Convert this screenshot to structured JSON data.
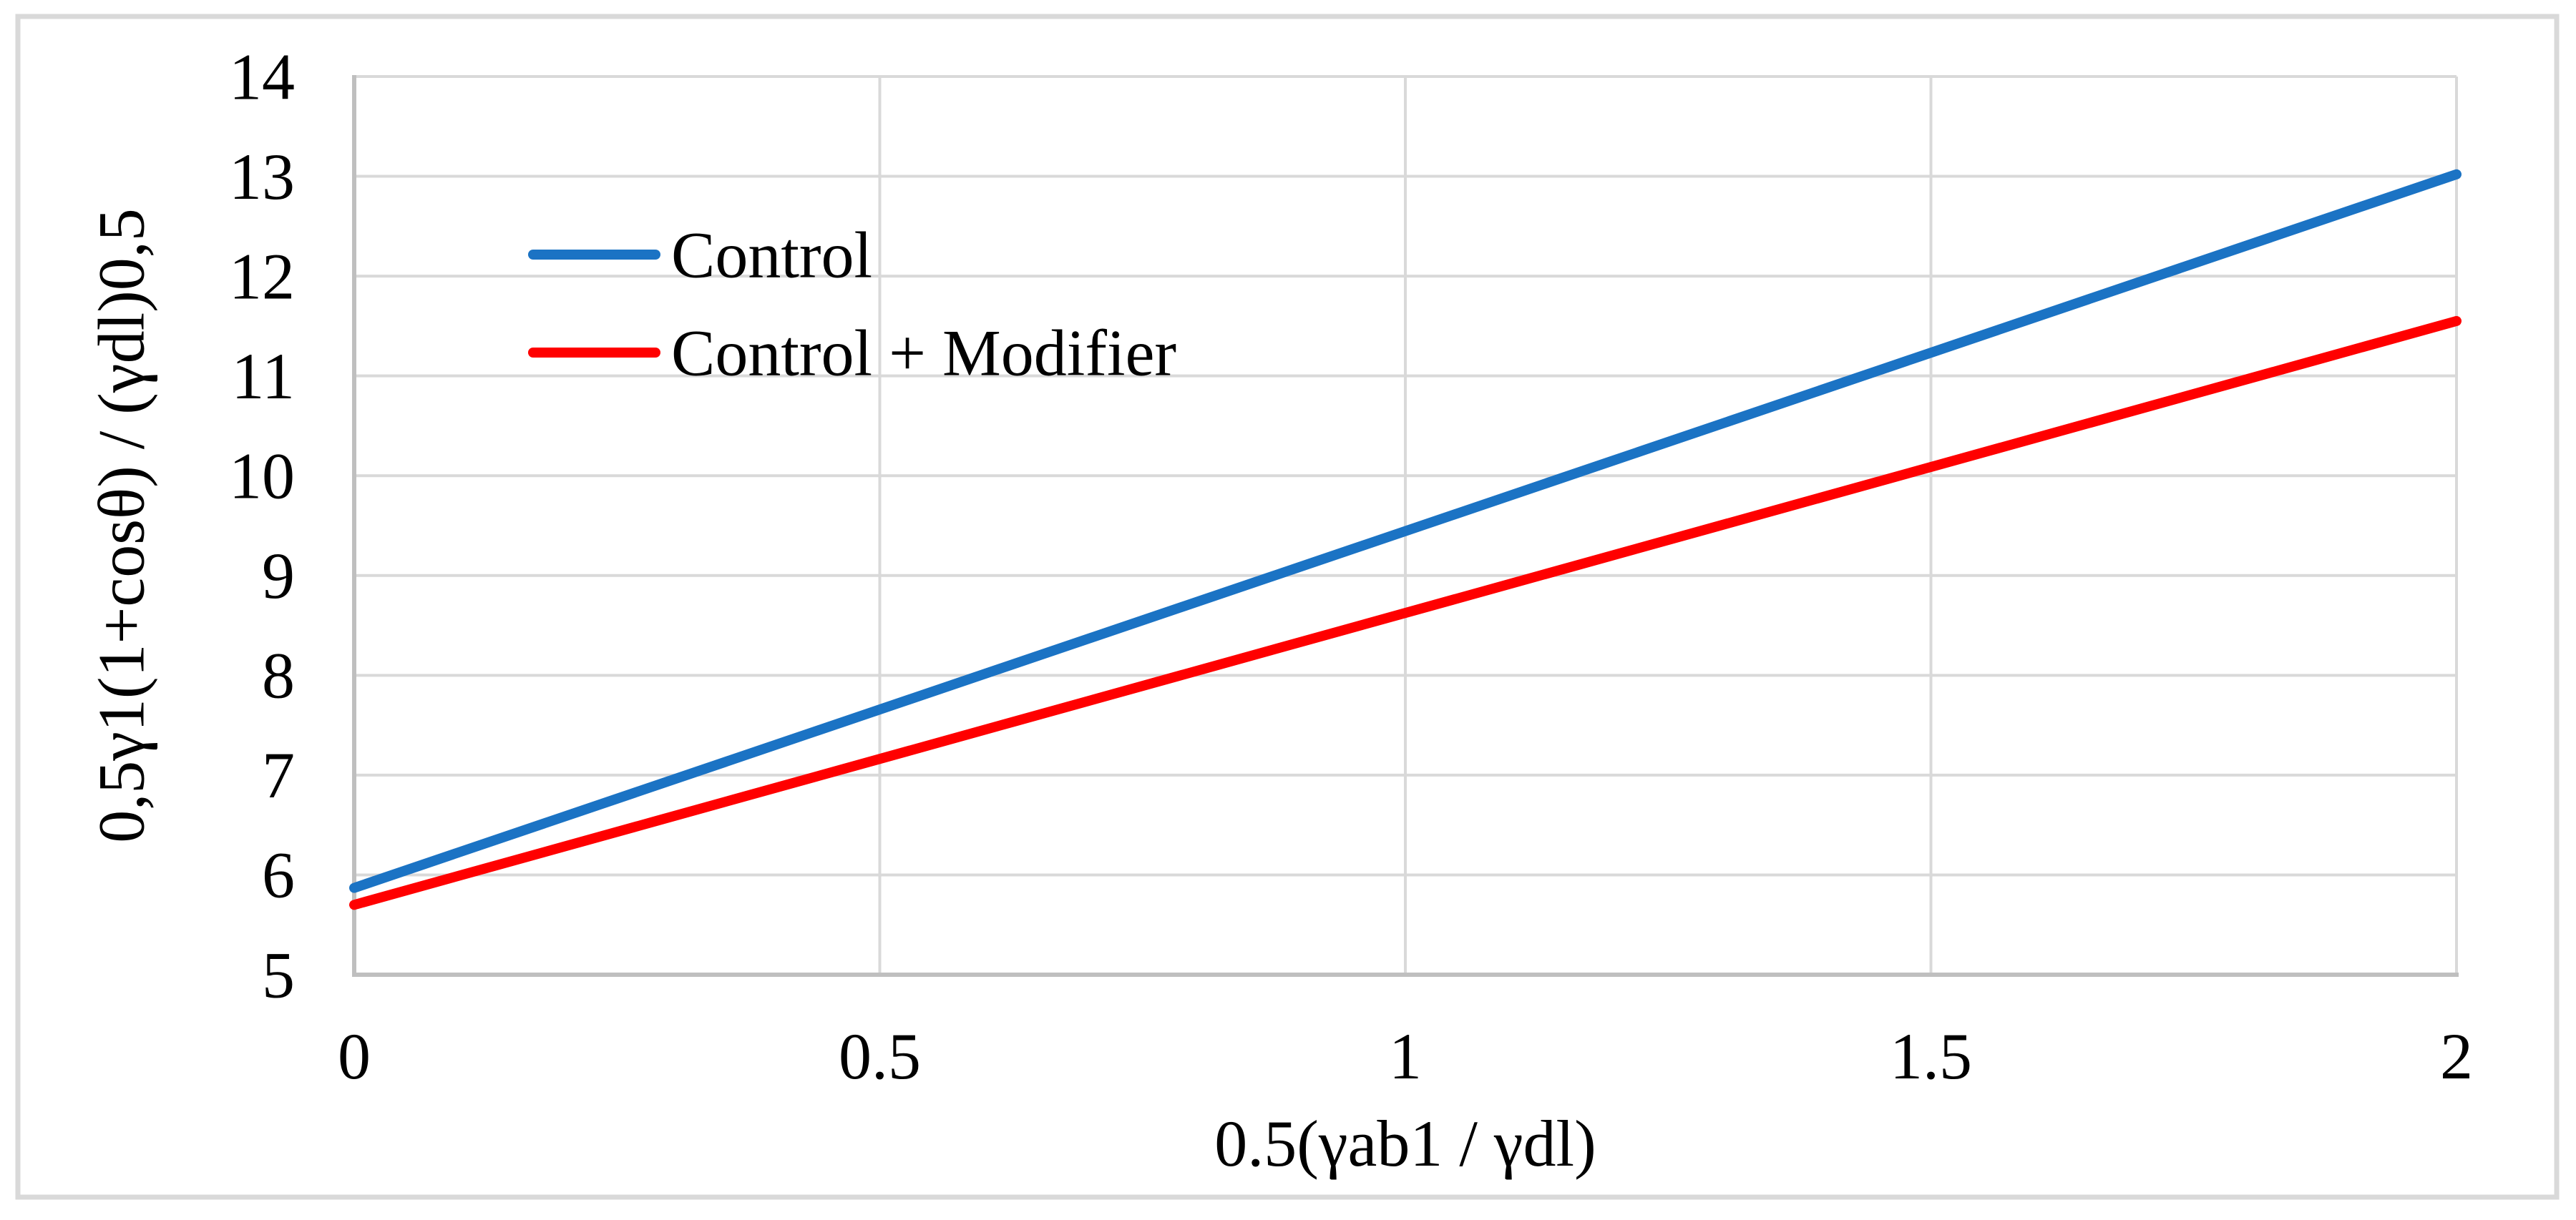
{
  "style": {
    "background": "#FFFFFF",
    "border_color": "#D9D9D9",
    "gridline_color": "#D9D9D9",
    "axis_line_color": "#BFBFBF",
    "text_color": "#000000"
  },
  "chart_data": {
    "type": "line",
    "title": "",
    "xlabel": "0.5(γab1 / γdl)",
    "ylabel": "0,5γ1(1+cosθ) / (γdl)0,5",
    "xlim": [
      0,
      2
    ],
    "ylim": [
      5,
      14
    ],
    "grid": true,
    "legend_position": "inside top-left",
    "xticks": [
      0,
      0.5,
      1,
      1.5,
      2
    ],
    "xtick_labels": [
      "0",
      "0.5",
      "1",
      "1.5",
      "2"
    ],
    "yticks": [
      5,
      6,
      7,
      8,
      9,
      10,
      11,
      12,
      13,
      14
    ],
    "ytick_labels": [
      "5",
      "6",
      "7",
      "8",
      "9",
      "10",
      "11",
      "12",
      "13",
      "14"
    ],
    "series": [
      {
        "name": "Control",
        "color": "#1B73C4",
        "x": [
          0,
          2
        ],
        "values": [
          5.87,
          13.02
        ]
      },
      {
        "name": "Control + Modifier",
        "color": "#FF0000",
        "x": [
          0,
          2
        ],
        "values": [
          5.7,
          11.55
        ]
      }
    ]
  }
}
